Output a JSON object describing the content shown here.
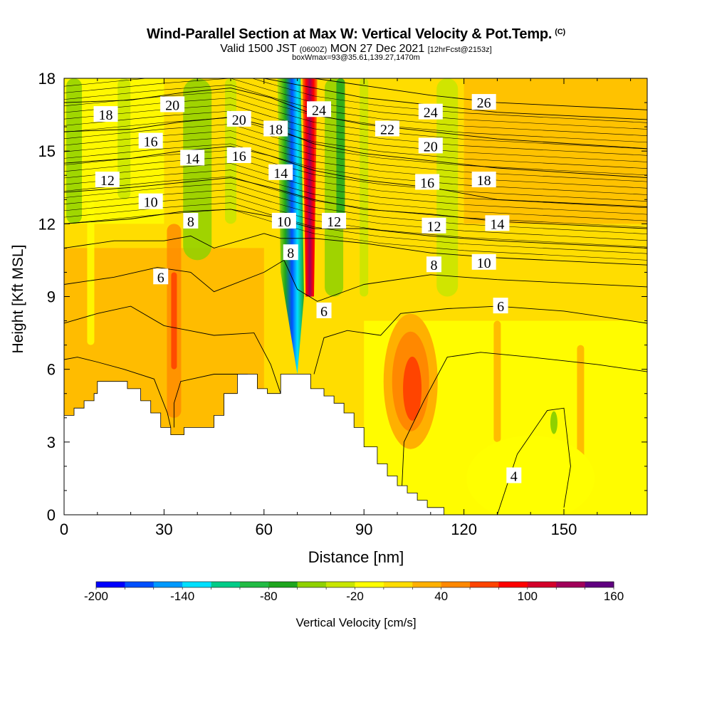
{
  "title": {
    "main": "Wind-Parallel Section at Max W: Vertical Velocity & Pot.Temp.",
    "copyright": "(C)",
    "valid_prefix": "Valid 1500 JST",
    "valid_utc": "(0600Z)",
    "valid_date": "MON 27 Dec 2021",
    "forecast": "[12hrFcst@2153z]",
    "boxinfo": "boxWmax=93@35.61,139.27,1470m"
  },
  "chart_data": {
    "type": "heatmap",
    "xlabel": "Distance [nm]",
    "ylabel": "Height [Kft MSL]",
    "xlim": [
      0,
      175
    ],
    "ylim": [
      0,
      18
    ],
    "x_ticks": [
      0,
      30,
      60,
      90,
      120,
      150
    ],
    "y_ticks": [
      0,
      3,
      6,
      9,
      12,
      15,
      18
    ],
    "colorbar": {
      "label": "Vertical Velocity [cm/s]",
      "tick_labels": [
        -200,
        -140,
        -80,
        -20,
        40,
        100,
        160
      ],
      "bounds": [
        -200,
        -180,
        -160,
        -140,
        -120,
        -100,
        -80,
        -60,
        -40,
        -20,
        0,
        20,
        40,
        60,
        80,
        100,
        120,
        140,
        160
      ],
      "colors": [
        "#0000ff",
        "#0050ff",
        "#0099ff",
        "#00e0ff",
        "#00cc88",
        "#22bb44",
        "#1ea51e",
        "#8fd100",
        "#c8e600",
        "#ffff00",
        "#ffdd00",
        "#ffb000",
        "#ff8800",
        "#ff4400",
        "#ff0000",
        "#d4002a",
        "#a0005a",
        "#600080"
      ]
    },
    "vertical_velocity_features": [
      {
        "type": "updraft",
        "x": 72.5,
        "y_range": [
          9,
          18
        ],
        "value_cm_s": 110
      },
      {
        "type": "downdraft",
        "x": 68,
        "y_range": [
          10,
          18
        ],
        "value_cm_s": -180
      },
      {
        "type": "downdraft",
        "x": 68,
        "y_range": [
          5.5,
          11
        ],
        "value_cm_s": -70
      },
      {
        "type": "updraft",
        "x": 105,
        "y_range": [
          3.5,
          8
        ],
        "value_cm_s": 80
      },
      {
        "type": "updraft",
        "x": 33,
        "y_range": [
          4,
          12
        ],
        "value_cm_s": 50
      },
      {
        "type": "downdraft",
        "x": 40,
        "y_range": [
          11,
          18
        ],
        "value_cm_s": -40
      },
      {
        "type": "downdraft",
        "x": 81,
        "y_range": [
          10,
          18
        ],
        "value_cm_s": -60
      },
      {
        "type": "downdraft",
        "x": 4,
        "y_range": [
          13,
          18
        ],
        "value_cm_s": -70
      }
    ],
    "terrain": [
      [
        0,
        4.1
      ],
      [
        3,
        4.1
      ],
      [
        3,
        4.4
      ],
      [
        6,
        4.4
      ],
      [
        6,
        4.7
      ],
      [
        9,
        4.7
      ],
      [
        9,
        5.0
      ],
      [
        10,
        5.0
      ],
      [
        10,
        5.5
      ],
      [
        19,
        5.5
      ],
      [
        19,
        5.2
      ],
      [
        23,
        5.2
      ],
      [
        23,
        4.7
      ],
      [
        26,
        4.7
      ],
      [
        26,
        4.2
      ],
      [
        29,
        4.2
      ],
      [
        29,
        3.6
      ],
      [
        32,
        3.6
      ],
      [
        32,
        3.3
      ],
      [
        36,
        3.3
      ],
      [
        36,
        3.6
      ],
      [
        45,
        3.6
      ],
      [
        45,
        4.1
      ],
      [
        48,
        4.1
      ],
      [
        48,
        5.0
      ],
      [
        52,
        5.0
      ],
      [
        52,
        5.8
      ],
      [
        58,
        5.8
      ],
      [
        58,
        5.2
      ],
      [
        61,
        5.2
      ],
      [
        61,
        5.0
      ],
      [
        65,
        5.0
      ],
      [
        65,
        5.8
      ],
      [
        74,
        5.8
      ],
      [
        74,
        5.2
      ],
      [
        78,
        5.2
      ],
      [
        78,
        4.9
      ],
      [
        81,
        4.9
      ],
      [
        81,
        4.6
      ],
      [
        84,
        4.6
      ],
      [
        84,
        4.2
      ],
      [
        87,
        4.2
      ],
      [
        87,
        3.6
      ],
      [
        90,
        3.6
      ],
      [
        90,
        2.8
      ],
      [
        94,
        2.8
      ],
      [
        94,
        2.1
      ],
      [
        97,
        2.1
      ],
      [
        97,
        1.6
      ],
      [
        100,
        1.6
      ],
      [
        100,
        1.2
      ],
      [
        103,
        1.2
      ],
      [
        103,
        0.9
      ],
      [
        106,
        0.9
      ],
      [
        106,
        0.6
      ],
      [
        109,
        0.6
      ],
      [
        109,
        0.3
      ],
      [
        114,
        0.3
      ],
      [
        114,
        0
      ],
      [
        175,
        0
      ],
      [
        175,
        0
      ],
      [
        0,
        0
      ]
    ],
    "isentropes": [
      {
        "label": "4",
        "points": [
          [
            130,
            0
          ],
          [
            136,
            2.5
          ],
          [
            145,
            4.3
          ],
          [
            150,
            4.4
          ],
          [
            152,
            2
          ],
          [
            150,
            0.3
          ]
        ]
      },
      {
        "label": "6",
        "points": [
          [
            0,
            6.4
          ],
          [
            4,
            6.5
          ],
          [
            10,
            6.3
          ],
          [
            18,
            6.0
          ],
          [
            27,
            5.6
          ],
          [
            31,
            4.2
          ],
          [
            32,
            3.6
          ]
        ]
      },
      {
        "label": "6",
        "points": [
          [
            65,
            5.0
          ],
          [
            62,
            6.2
          ],
          [
            57,
            7.5
          ],
          [
            45,
            7.4
          ],
          [
            30,
            7.8
          ],
          [
            20,
            8.6
          ],
          [
            10,
            8.3
          ],
          [
            0,
            7.9
          ]
        ]
      },
      {
        "label": "6",
        "points": [
          [
            75,
            5.8
          ],
          [
            78,
            7.3
          ],
          [
            85,
            7.6
          ],
          [
            95,
            7.4
          ],
          [
            101,
            8.3
          ],
          [
            115,
            8.5
          ],
          [
            130,
            8.6
          ],
          [
            150,
            8.4
          ],
          [
            175,
            7.9
          ]
        ]
      },
      {
        "label": "6",
        "points": [
          [
            33,
            3.6
          ],
          [
            33,
            4.6
          ],
          [
            35,
            5.5
          ],
          [
            45,
            5.8
          ],
          [
            55,
            5.8
          ],
          [
            58,
            5.3
          ]
        ]
      },
      {
        "label": "6",
        "points": [
          [
            101,
            0
          ],
          [
            102,
            3
          ],
          [
            108,
            4.7
          ],
          [
            115,
            6.5
          ],
          [
            125,
            6.7
          ],
          [
            140,
            6.5
          ],
          [
            160,
            6.2
          ],
          [
            175,
            5.9
          ]
        ]
      },
      {
        "label": "6",
        "points": [
          [
            0,
            9.5
          ],
          [
            15,
            9.8
          ],
          [
            28,
            10.2
          ],
          [
            38,
            10.0
          ],
          [
            45,
            9.2
          ],
          [
            60,
            10.0
          ],
          [
            66,
            10.5
          ],
          [
            70,
            9.3
          ],
          [
            76,
            8.8
          ],
          [
            90,
            9.5
          ],
          [
            110,
            9.9
          ],
          [
            130,
            9.7
          ],
          [
            175,
            9.4
          ]
        ]
      },
      {
        "label": "8",
        "points": [
          [
            0,
            11.0
          ],
          [
            15,
            11.3
          ],
          [
            30,
            11.3
          ],
          [
            38,
            11.5
          ],
          [
            45,
            11.0
          ],
          [
            60,
            11.6
          ],
          [
            65,
            11.4
          ],
          [
            75,
            11.4
          ],
          [
            90,
            11.2
          ],
          [
            110,
            10.8
          ],
          [
            130,
            10.6
          ],
          [
            175,
            10.3
          ]
        ]
      },
      {
        "label": "10",
        "points": [
          [
            0,
            12.0
          ],
          [
            20,
            12.2
          ],
          [
            35,
            12.5
          ],
          [
            50,
            12.6
          ],
          [
            62,
            12.3
          ],
          [
            75,
            11.8
          ],
          [
            90,
            11.8
          ],
          [
            110,
            11.5
          ],
          [
            130,
            11.3
          ],
          [
            175,
            11.0
          ]
        ]
      },
      {
        "label": "12",
        "points": [
          [
            0,
            13.3
          ],
          [
            20,
            13.5
          ],
          [
            35,
            13.7
          ],
          [
            50,
            13.9
          ],
          [
            62,
            13.5
          ],
          [
            75,
            13.0
          ],
          [
            90,
            12.6
          ],
          [
            110,
            12.4
          ],
          [
            130,
            12.1
          ],
          [
            175,
            11.8
          ]
        ]
      },
      {
        "label": "14",
        "points": [
          [
            0,
            14.5
          ],
          [
            20,
            14.7
          ],
          [
            35,
            15.0
          ],
          [
            50,
            15.2
          ],
          [
            62,
            14.8
          ],
          [
            75,
            14.2
          ],
          [
            90,
            13.8
          ],
          [
            110,
            13.5
          ],
          [
            130,
            13.0
          ],
          [
            175,
            12.7
          ]
        ]
      },
      {
        "label": "16",
        "points": [
          [
            0,
            15.8
          ],
          [
            20,
            15.9
          ],
          [
            35,
            16.2
          ],
          [
            50,
            16.4
          ],
          [
            62,
            16.0
          ],
          [
            75,
            15.3
          ],
          [
            90,
            14.9
          ],
          [
            110,
            14.6
          ],
          [
            130,
            14.3
          ],
          [
            175,
            13.9
          ]
        ]
      },
      {
        "label": "18",
        "points": [
          [
            0,
            17.0
          ],
          [
            20,
            17.1
          ],
          [
            35,
            17.4
          ],
          [
            50,
            17.6
          ],
          [
            62,
            17.2
          ],
          [
            75,
            16.5
          ],
          [
            90,
            16.1
          ],
          [
            110,
            15.8
          ],
          [
            130,
            15.5
          ],
          [
            175,
            15.1
          ]
        ]
      },
      {
        "label": "20",
        "points": [
          [
            0,
            18.0
          ],
          [
            20,
            18.0
          ],
          [
            40,
            18.0
          ],
          [
            60,
            18.0
          ],
          [
            75,
            17.6
          ],
          [
            90,
            17.2
          ],
          [
            110,
            16.9
          ],
          [
            130,
            16.6
          ],
          [
            175,
            16.3
          ]
        ]
      },
      {
        "label": "22",
        "points": [
          [
            75,
            18.0
          ],
          [
            90,
            17.7
          ],
          [
            110,
            17.3
          ],
          [
            130,
            17.0
          ],
          [
            175,
            16.7
          ]
        ]
      }
    ],
    "contour_labels": [
      {
        "text": "18",
        "x": 12.5,
        "y": 16.5
      },
      {
        "text": "20",
        "x": 32.5,
        "y": 16.9
      },
      {
        "text": "20",
        "x": 52.5,
        "y": 16.3
      },
      {
        "text": "18",
        "x": 63.5,
        "y": 15.9
      },
      {
        "text": "24",
        "x": 76.5,
        "y": 16.7
      },
      {
        "text": "22",
        "x": 97,
        "y": 15.9
      },
      {
        "text": "24",
        "x": 110,
        "y": 16.6
      },
      {
        "text": "26",
        "x": 126,
        "y": 17.0
      },
      {
        "text": "16",
        "x": 26,
        "y": 15.4
      },
      {
        "text": "16",
        "x": 52.5,
        "y": 14.8
      },
      {
        "text": "14",
        "x": 38.5,
        "y": 14.7
      },
      {
        "text": "14",
        "x": 65,
        "y": 14.1
      },
      {
        "text": "20",
        "x": 110,
        "y": 15.2
      },
      {
        "text": "12",
        "x": 13,
        "y": 13.8
      },
      {
        "text": "16",
        "x": 109,
        "y": 13.7
      },
      {
        "text": "18",
        "x": 126,
        "y": 13.8
      },
      {
        "text": "10",
        "x": 26,
        "y": 12.9
      },
      {
        "text": "8",
        "x": 38,
        "y": 12.1
      },
      {
        "text": "10",
        "x": 66,
        "y": 12.1
      },
      {
        "text": "12",
        "x": 81,
        "y": 12.1
      },
      {
        "text": "12",
        "x": 111,
        "y": 11.9
      },
      {
        "text": "14",
        "x": 130,
        "y": 12.0
      },
      {
        "text": "8",
        "x": 68,
        "y": 10.8
      },
      {
        "text": "8",
        "x": 111,
        "y": 10.3
      },
      {
        "text": "10",
        "x": 126,
        "y": 10.4
      },
      {
        "text": "6",
        "x": 29,
        "y": 9.8
      },
      {
        "text": "6",
        "x": 78,
        "y": 8.4
      },
      {
        "text": "6",
        "x": 131,
        "y": 8.6
      },
      {
        "text": "4",
        "x": 135,
        "y": 1.6
      }
    ]
  }
}
